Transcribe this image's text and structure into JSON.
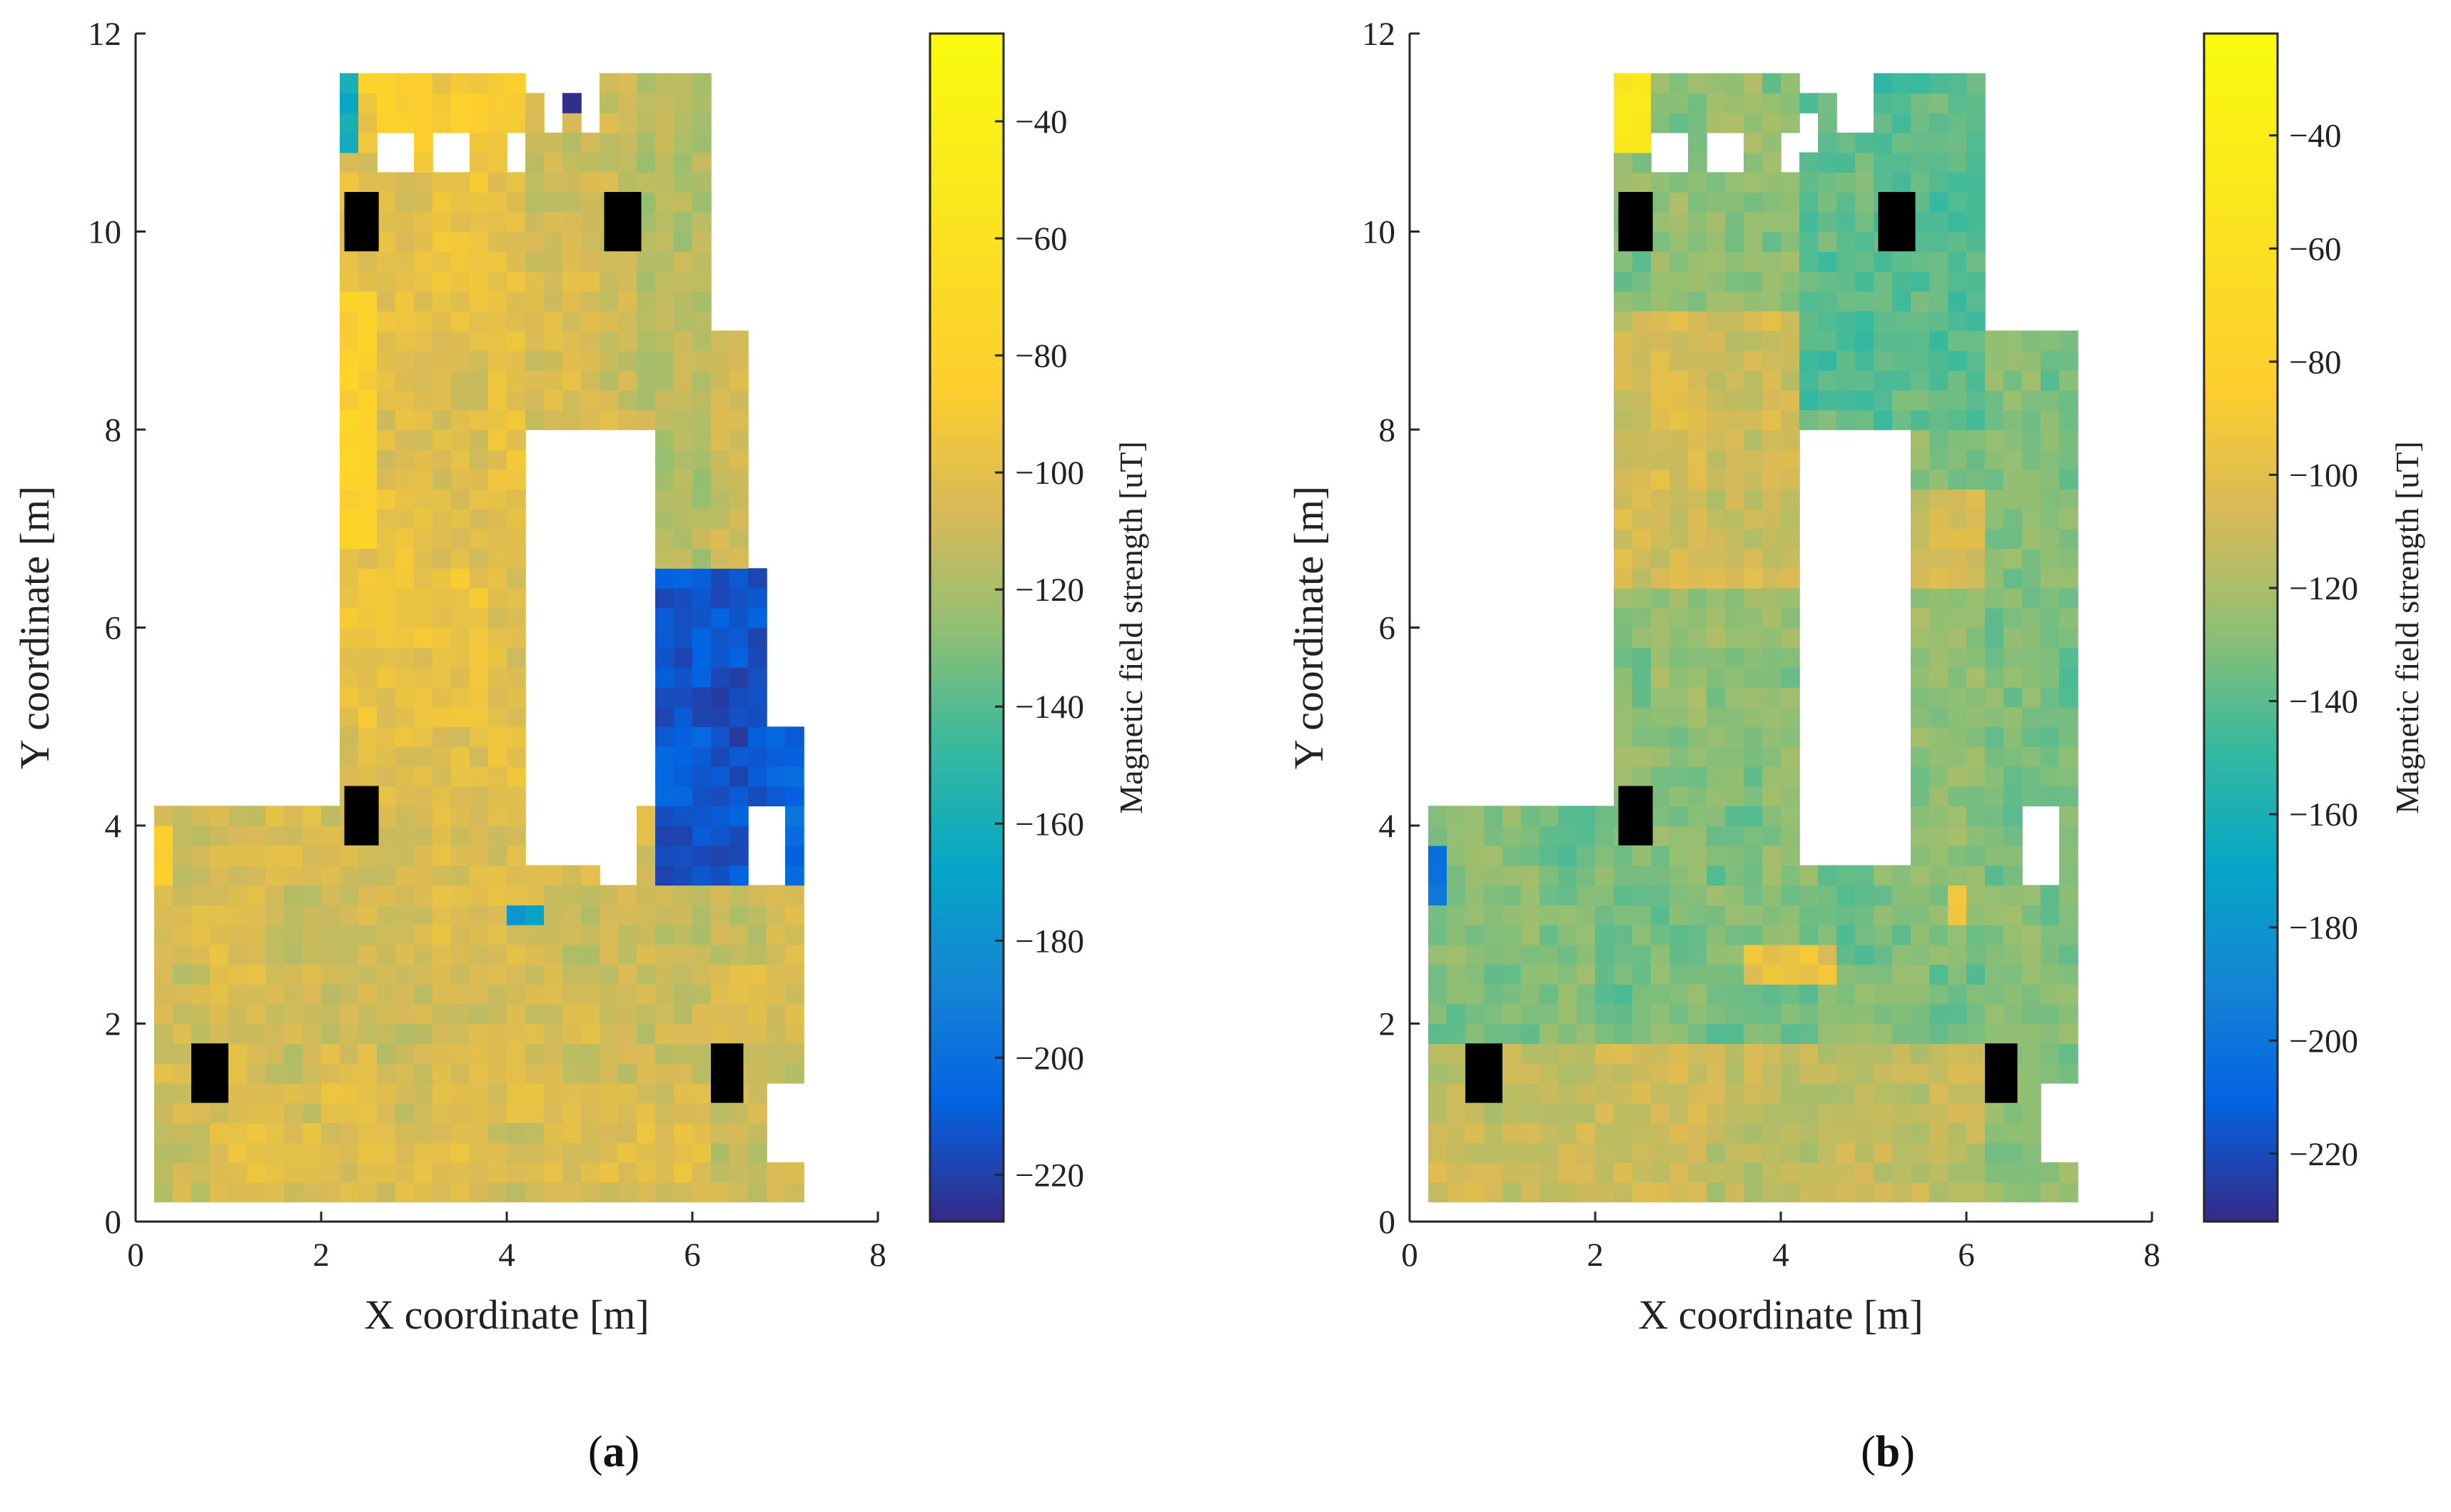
{
  "figure": {
    "panel_labels": [
      "(a)",
      "(b)"
    ],
    "panel_letters": [
      "a",
      "b"
    ]
  },
  "colors": {
    "white_obstacle": "#ffffff",
    "black_pillar": "#000000",
    "axis": "#262626",
    "text": "#222222"
  },
  "chart_data": [
    {
      "type": "heatmap",
      "panel": "(a)",
      "xlabel": "X coordinate [m]",
      "ylabel": "Y coordinate [m]",
      "xlim": [
        0,
        8
      ],
      "ylim": [
        0,
        12
      ],
      "xticks": [
        0,
        2,
        4,
        6,
        8
      ],
      "yticks": [
        0,
        2,
        4,
        6,
        8,
        10,
        12
      ],
      "colorbar": {
        "label": "Magnetic field strength [uT]",
        "range": [
          -228,
          -25
        ],
        "ticks": [
          -40,
          -60,
          -80,
          -100,
          -120,
          -140,
          -160,
          -180,
          -200,
          -220
        ],
        "colormap": "parula"
      },
      "regions": [
        {
          "name": "lower-room",
          "x": [
            0.2,
            7.2
          ],
          "y": [
            0.2,
            4.2
          ],
          "value": -108
        },
        {
          "name": "column-left",
          "x": [
            2.2,
            4.2
          ],
          "y": [
            4.2,
            11.6
          ],
          "value": -100
        },
        {
          "name": "column-middle",
          "x": [
            4.2,
            5.4
          ],
          "y": [
            8.0,
            11.6
          ],
          "value": -108
        },
        {
          "name": "column-right",
          "x": [
            5.4,
            6.2
          ],
          "y": [
            8.0,
            11.6
          ],
          "value": -118
        },
        {
          "name": "right-lobe-upper",
          "x": [
            6.2,
            6.6
          ],
          "y": [
            3.5,
            9.0
          ],
          "value": -112
        },
        {
          "name": "right-strip-low",
          "x": [
            5.6,
            6.2
          ],
          "y": [
            3.5,
            8.0
          ],
          "value": -120
        },
        {
          "name": "dark-blue-patch",
          "x": [
            5.6,
            6.8
          ],
          "y": [
            3.5,
            6.6
          ],
          "value": -212
        },
        {
          "name": "dark-blue-patch-extension",
          "x": [
            6.6,
            7.2
          ],
          "y": [
            3.5,
            5.0
          ],
          "value": -205
        },
        {
          "name": "yellow-green-top-band",
          "x": [
            2.4,
            4.2
          ],
          "y": [
            10.9,
            11.6
          ],
          "value": -88
        },
        {
          "name": "yellow-green-left-edge",
          "x": [
            2.2,
            2.6
          ],
          "y": [
            6.8,
            9.5
          ],
          "value": -82
        },
        {
          "name": "blue-top-left-corner",
          "x": [
            2.2,
            2.4
          ],
          "y": [
            10.8,
            11.6
          ],
          "value": -160
        },
        {
          "name": "dark-dot-top",
          "x": [
            4.6,
            4.8
          ],
          "y": [
            11.2,
            11.4
          ],
          "value": -220
        },
        {
          "name": "blue-small-bottom",
          "x": [
            4.0,
            4.4
          ],
          "y": [
            3.0,
            3.2
          ],
          "value": -175
        },
        {
          "name": "lower-warm-band",
          "x": [
            1.0,
            6.2
          ],
          "y": [
            0.4,
            1.4
          ],
          "value": -104
        },
        {
          "name": "left-yellow-spot",
          "x": [
            0.2,
            0.4
          ],
          "y": [
            3.4,
            4.0
          ],
          "value": -85
        }
      ],
      "white_cutouts": [
        {
          "x": [
            4.2,
            5.4
          ],
          "y": [
            3.7,
            8.0
          ]
        },
        {
          "x": [
            5.0,
            5.4
          ],
          "y": [
            3.5,
            3.7
          ]
        },
        {
          "x": [
            6.7,
            7.0
          ],
          "y": [
            3.5,
            4.3
          ]
        },
        {
          "x": [
            6.8,
            7.2
          ],
          "y": [
            0.6,
            1.4
          ]
        },
        {
          "x": [
            2.6,
            3.0
          ],
          "y": [
            10.7,
            11.0
          ]
        },
        {
          "x": [
            3.2,
            3.6
          ],
          "y": [
            10.7,
            11.0
          ]
        },
        {
          "x": [
            4.0,
            4.2
          ],
          "y": [
            10.7,
            11.0
          ]
        },
        {
          "x": [
            4.4,
            4.6
          ],
          "y": [
            11.0,
            11.4
          ]
        },
        {
          "x": [
            4.8,
            5.0
          ],
          "y": [
            11.0,
            11.6
          ]
        },
        {
          "x": [
            4.2,
            4.8
          ],
          "y": [
            11.4,
            11.6
          ]
        }
      ],
      "pillars": [
        {
          "x": [
            2.25,
            2.62
          ],
          "y": [
            9.8,
            10.4
          ]
        },
        {
          "x": [
            5.05,
            5.45
          ],
          "y": [
            9.8,
            10.4
          ]
        },
        {
          "x": [
            2.25,
            2.62
          ],
          "y": [
            3.8,
            4.4
          ]
        },
        {
          "x": [
            0.6,
            1.0
          ],
          "y": [
            1.2,
            1.8
          ]
        },
        {
          "x": [
            6.2,
            6.55
          ],
          "y": [
            1.2,
            1.8
          ]
        }
      ]
    },
    {
      "type": "heatmap",
      "panel": "(b)",
      "xlabel": "X coordinate [m]",
      "ylabel": "Y coordinate [m]",
      "xlim": [
        0,
        8
      ],
      "ylim": [
        0,
        12
      ],
      "xticks": [
        0,
        2,
        4,
        6,
        8
      ],
      "yticks": [
        0,
        2,
        4,
        6,
        8,
        10,
        12
      ],
      "colorbar": {
        "label": "Magnetic field strength [uT]",
        "range": [
          -232,
          -22
        ],
        "ticks": [
          -40,
          -60,
          -80,
          -100,
          -120,
          -140,
          -160,
          -180,
          -200,
          -220
        ],
        "colormap": "parula"
      },
      "regions": [
        {
          "name": "lower-room",
          "x": [
            0.2,
            7.2
          ],
          "y": [
            0.2,
            4.2
          ],
          "value": -132
        },
        {
          "name": "lower-warm-band",
          "x": [
            0.2,
            6.2
          ],
          "y": [
            0.2,
            1.8
          ],
          "value": -112
        },
        {
          "name": "column-left",
          "x": [
            2.2,
            4.2
          ],
          "y": [
            4.2,
            11.6
          ],
          "value": -128
        },
        {
          "name": "column-mid-warm",
          "x": [
            2.2,
            4.4
          ],
          "y": [
            6.5,
            9.2
          ],
          "value": -108
        },
        {
          "name": "column-right-top",
          "x": [
            4.2,
            6.2
          ],
          "y": [
            8.0,
            11.6
          ],
          "value": -140
        },
        {
          "name": "right-lobe",
          "x": [
            5.4,
            6.2
          ],
          "y": [
            3.5,
            8.0
          ],
          "value": -128
        },
        {
          "name": "right-lobe-outer",
          "x": [
            6.2,
            7.2
          ],
          "y": [
            3.5,
            9.0
          ],
          "value": -132
        },
        {
          "name": "warm-right-band",
          "x": [
            5.4,
            6.2
          ],
          "y": [
            6.5,
            7.5
          ],
          "value": -105
        },
        {
          "name": "warm-patch-center",
          "x": [
            3.6,
            4.6
          ],
          "y": [
            2.4,
            2.8
          ],
          "value": -95
        },
        {
          "name": "yellow-top-left",
          "x": [
            2.2,
            2.6
          ],
          "y": [
            10.8,
            11.6
          ],
          "value": -50
        },
        {
          "name": "blue-left-edge",
          "x": [
            0.2,
            0.4
          ],
          "y": [
            3.2,
            3.8
          ],
          "value": -205
        },
        {
          "name": "warm-small-right",
          "x": [
            5.8,
            6.0
          ],
          "y": [
            3.0,
            3.4
          ],
          "value": -90
        }
      ],
      "white_cutouts": [
        {
          "x": [
            4.2,
            5.4
          ],
          "y": [
            3.7,
            8.0
          ]
        },
        {
          "x": [
            6.7,
            7.0
          ],
          "y": [
            3.5,
            4.3
          ]
        },
        {
          "x": [
            6.8,
            7.2
          ],
          "y": [
            0.6,
            1.4
          ]
        },
        {
          "x": [
            2.6,
            3.0
          ],
          "y": [
            10.7,
            11.0
          ]
        },
        {
          "x": [
            3.2,
            3.6
          ],
          "y": [
            10.7,
            11.0
          ]
        },
        {
          "x": [
            4.0,
            4.2
          ],
          "y": [
            10.7,
            11.0
          ]
        },
        {
          "x": [
            4.2,
            4.4
          ],
          "y": [
            10.9,
            11.2
          ]
        },
        {
          "x": [
            4.6,
            4.8
          ],
          "y": [
            11.0,
            11.4
          ]
        },
        {
          "x": [
            4.8,
            5.0
          ],
          "y": [
            11.0,
            11.6
          ]
        },
        {
          "x": [
            4.2,
            4.8
          ],
          "y": [
            11.4,
            11.6
          ]
        }
      ],
      "pillars": [
        {
          "x": [
            2.25,
            2.62
          ],
          "y": [
            9.8,
            10.4
          ]
        },
        {
          "x": [
            5.05,
            5.45
          ],
          "y": [
            9.8,
            10.4
          ]
        },
        {
          "x": [
            2.25,
            2.62
          ],
          "y": [
            3.8,
            4.4
          ]
        },
        {
          "x": [
            0.6,
            1.0
          ],
          "y": [
            1.2,
            1.8
          ]
        },
        {
          "x": [
            6.2,
            6.55
          ],
          "y": [
            1.2,
            1.8
          ]
        }
      ]
    }
  ]
}
